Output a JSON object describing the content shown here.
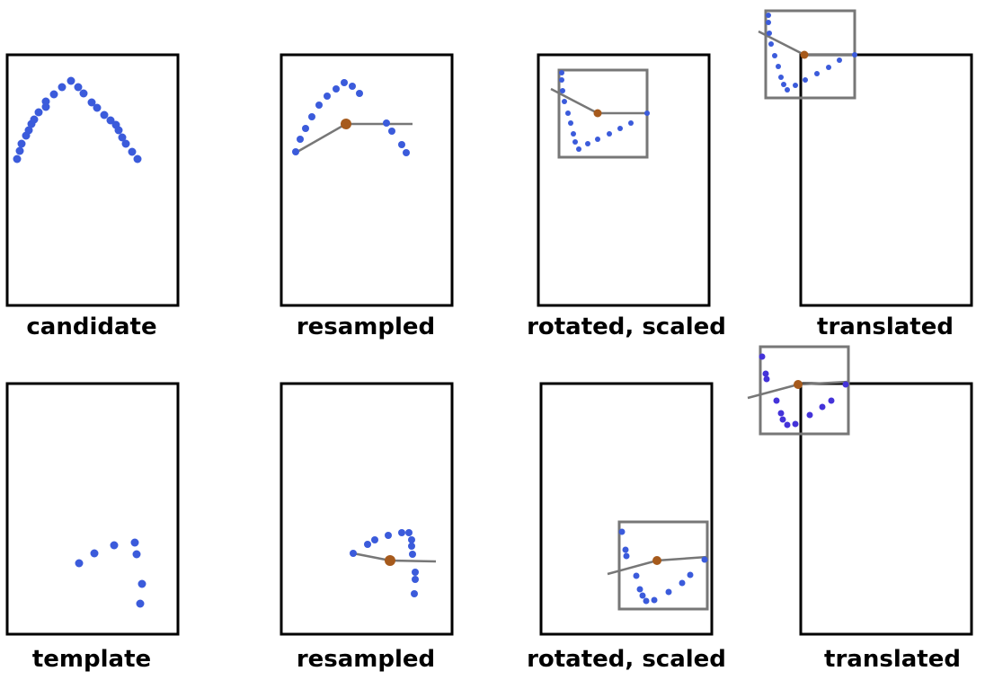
{
  "rows": [
    {
      "id": "candidate",
      "panels": [
        {
          "caption": "candidate"
        },
        {
          "caption": "resampled"
        },
        {
          "caption": "rotated, scaled"
        },
        {
          "caption": "translated"
        }
      ]
    },
    {
      "id": "template",
      "panels": [
        {
          "caption": "template"
        },
        {
          "caption": "resampled"
        },
        {
          "caption": "rotated, scaled"
        },
        {
          "caption": "translated"
        }
      ]
    }
  ],
  "colors": {
    "point": "#3b5bdb",
    "point_dark": "#4433d9",
    "centroid": "#a65a1c",
    "box": "#777777",
    "frame": "#000000"
  }
}
